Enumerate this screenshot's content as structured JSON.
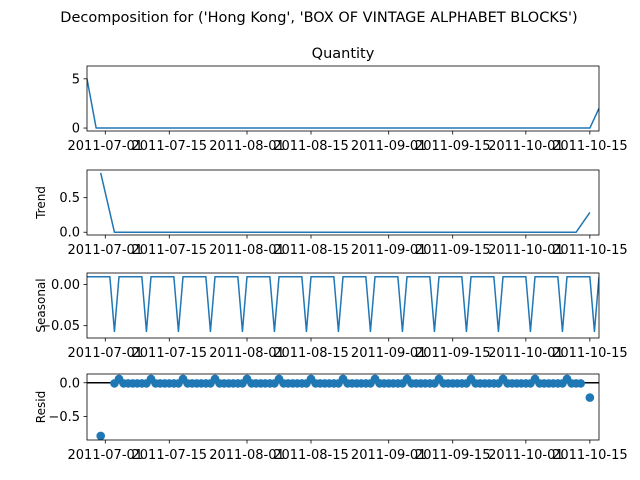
{
  "figure": {
    "suptitle": "Decomposition for ('Hong Kong', 'BOX OF VINTAGE ALPHABET BLOCKS')"
  },
  "colors": {
    "series": "#1f77b4",
    "zero_line": "#000000",
    "frame": "#000000"
  },
  "chart_data": [
    {
      "type": "line",
      "title": "Quantity",
      "ylabel": "",
      "ylim": [
        -0.3,
        6.3
      ],
      "yticks": [
        0,
        5
      ],
      "ytick_labels": [
        "0",
        "5"
      ],
      "xlim": [
        "2011-06-27",
        "2011-10-17"
      ],
      "xticks": [
        "2011-07-01",
        "2011-07-15",
        "2011-08-01",
        "2011-08-15",
        "2011-09-01",
        "2011-09-15",
        "2011-10-01",
        "2011-10-15"
      ],
      "xtick_labels": [
        "2011-07-01",
        "2011-07-15",
        "2011-08-01",
        "2011-08-15",
        "2011-09-01",
        "2011-09-15",
        "2011-10-01",
        "2011-10-15"
      ],
      "grid": false,
      "series": [
        {
          "points": [
            [
              "2011-06-27",
              5
            ],
            [
              "2011-06-29",
              0
            ],
            [
              "2011-10-15",
              0
            ],
            [
              "2011-10-17",
              2
            ]
          ]
        }
      ]
    },
    {
      "type": "line",
      "title": "",
      "ylabel": "Trend",
      "ylim": [
        -0.04,
        0.9
      ],
      "yticks": [
        0,
        0.5
      ],
      "ytick_labels": [
        "0.0",
        "0.5"
      ],
      "xlim": [
        "2011-06-27",
        "2011-10-17"
      ],
      "xticks": [
        "2011-07-01",
        "2011-07-15",
        "2011-08-01",
        "2011-08-15",
        "2011-09-01",
        "2011-09-15",
        "2011-10-01",
        "2011-10-15"
      ],
      "xtick_labels": [
        "2011-07-01",
        "2011-07-15",
        "2011-08-01",
        "2011-08-15",
        "2011-09-01",
        "2011-09-15",
        "2011-10-01",
        "2011-10-15"
      ],
      "grid": false,
      "series": [
        {
          "points": [
            [
              "2011-06-30",
              0.857
            ],
            [
              "2011-07-03",
              0
            ],
            [
              "2011-10-12",
              0
            ],
            [
              "2011-10-15",
              0.286
            ]
          ]
        }
      ]
    },
    {
      "type": "line",
      "title": "",
      "ylabel": "Seasonal",
      "ylim": [
        -0.065,
        0.014
      ],
      "yticks": [
        0,
        -0.05
      ],
      "ytick_labels": [
        "0.00",
        "−0.05"
      ],
      "xlim": [
        "2011-06-27",
        "2011-10-17"
      ],
      "xticks": [
        "2011-07-01",
        "2011-07-15",
        "2011-08-01",
        "2011-08-15",
        "2011-09-01",
        "2011-09-15",
        "2011-10-01",
        "2011-10-15"
      ],
      "xtick_labels": [
        "2011-07-01",
        "2011-07-15",
        "2011-08-01",
        "2011-08-15",
        "2011-09-01",
        "2011-09-15",
        "2011-10-01",
        "2011-10-15"
      ],
      "grid": false,
      "period_days": 7,
      "pattern": [
        0.0095,
        0.0095,
        0.0095,
        0.0095,
        0.0095,
        0.0095,
        -0.057
      ],
      "start": "2011-06-27",
      "end": "2011-10-17"
    },
    {
      "type": "scatter",
      "title": "",
      "ylabel": "Resid",
      "ylim": [
        -0.85,
        0.13
      ],
      "yticks": [
        0,
        -0.5
      ],
      "ytick_labels": [
        "0.0",
        "−0.5"
      ],
      "xlim": [
        "2011-06-27",
        "2011-10-17"
      ],
      "xticks": [
        "2011-07-01",
        "2011-07-15",
        "2011-08-01",
        "2011-08-15",
        "2011-09-01",
        "2011-09-15",
        "2011-10-01",
        "2011-10-15"
      ],
      "xtick_labels": [
        "2011-07-01",
        "2011-07-15",
        "2011-08-01",
        "2011-08-15",
        "2011-09-01",
        "2011-09-15",
        "2011-10-01",
        "2011-10-15"
      ],
      "grid": false,
      "zero_line": true,
      "series": [
        {
          "special_points": [
            [
              "2011-06-30",
              -0.79
            ],
            [
              "2011-10-15",
              -0.22
            ]
          ],
          "range_start": "2011-07-03",
          "range_end": "2011-10-13",
          "base": -0.0095,
          "peak": 0.057,
          "peak_offset": 1,
          "period_days": 7
        }
      ]
    }
  ]
}
